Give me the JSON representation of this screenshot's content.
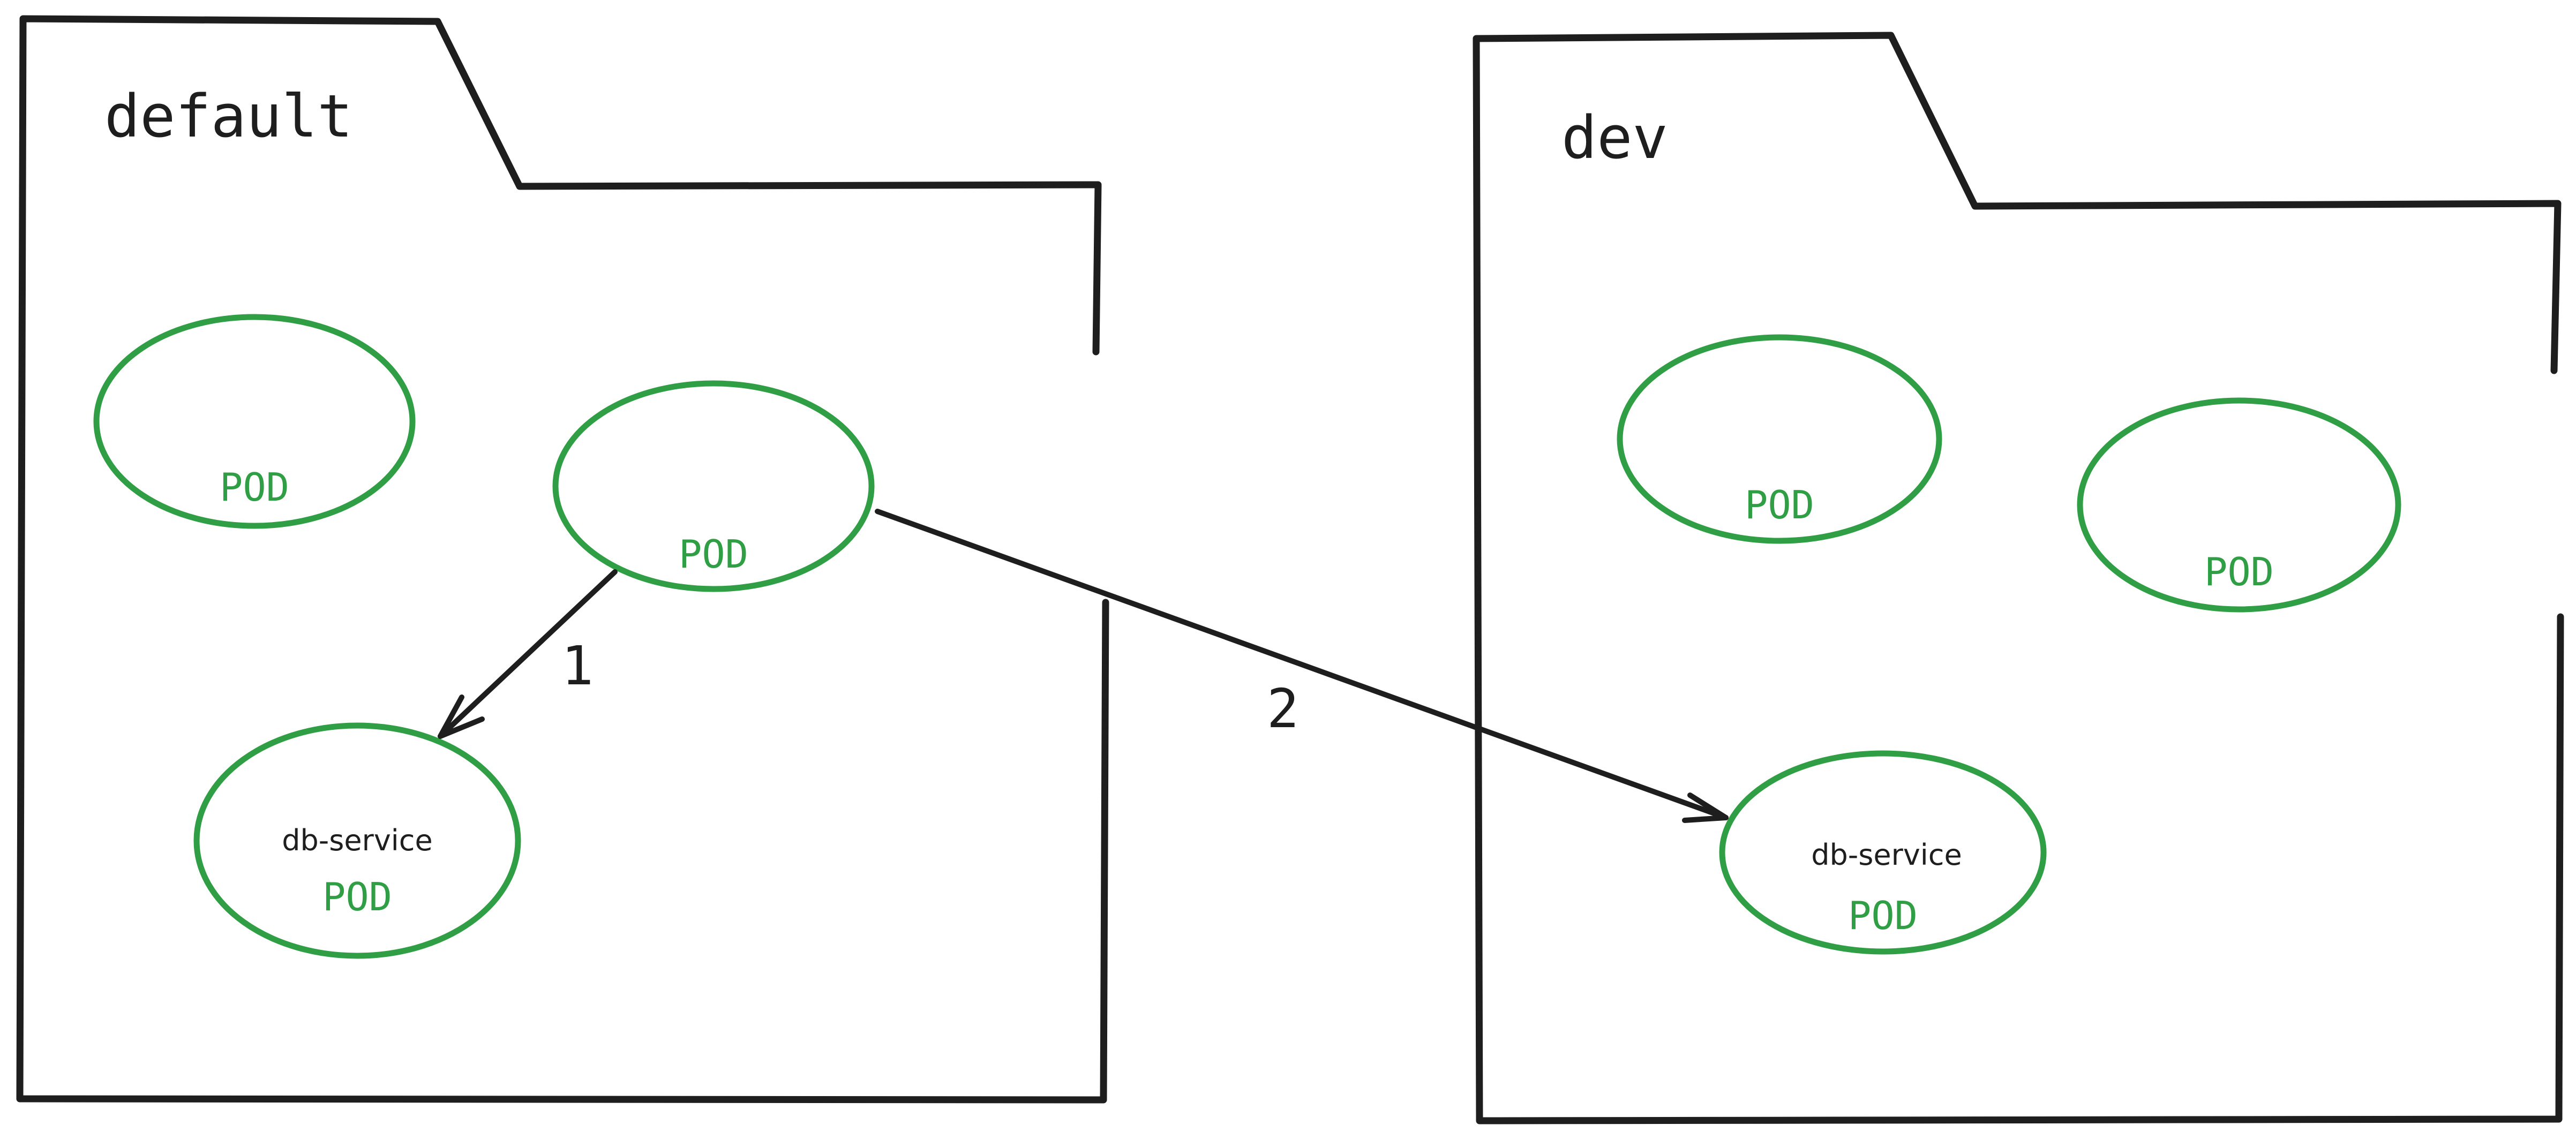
{
  "namespaces": [
    {
      "label": "default",
      "pods": [
        {
          "label": "POD"
        },
        {
          "label": "POD"
        },
        {
          "label": "POD",
          "service": "db-service"
        }
      ]
    },
    {
      "label": "dev",
      "pods": [
        {
          "label": "POD"
        },
        {
          "label": "POD"
        },
        {
          "label": "POD",
          "service": "db-service"
        }
      ]
    }
  ],
  "connections": [
    {
      "from": "default-pod-2",
      "to": "default-db-service-pod",
      "label": "1"
    },
    {
      "from": "default-pod-2",
      "to": "dev-db-service-pod",
      "label": "2"
    }
  ],
  "colors": {
    "pod": "#2f9e44",
    "stroke": "#1e1e1e",
    "background": "#ffffff"
  }
}
